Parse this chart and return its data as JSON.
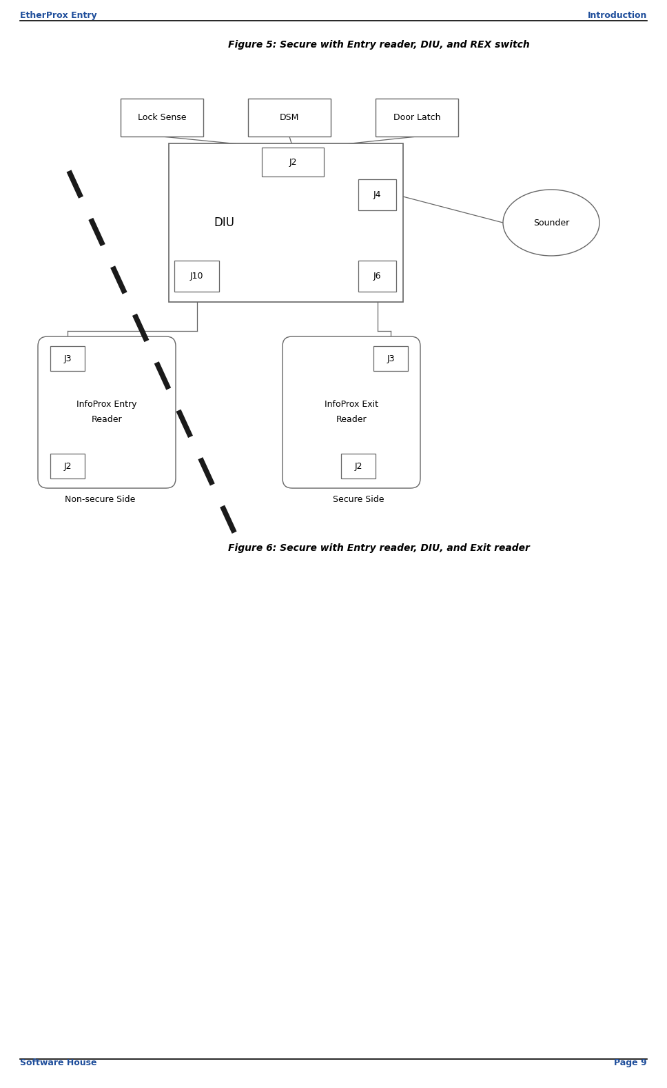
{
  "title_fig5": "Figure 5: Secure with Entry reader, DIU, and REX switch",
  "title_fig6": "Figure 6: Secure with Entry reader, DIU, and Exit reader",
  "header_left": "EtherProx Entry",
  "header_right": "Introduction",
  "footer_left": "Software House",
  "footer_right": "Page 9",
  "blue_color": "#1F4E9B",
  "black_color": "#000000",
  "bg_color": "#ffffff",
  "box_edge_color": "#666666",
  "line_color": "#666666"
}
